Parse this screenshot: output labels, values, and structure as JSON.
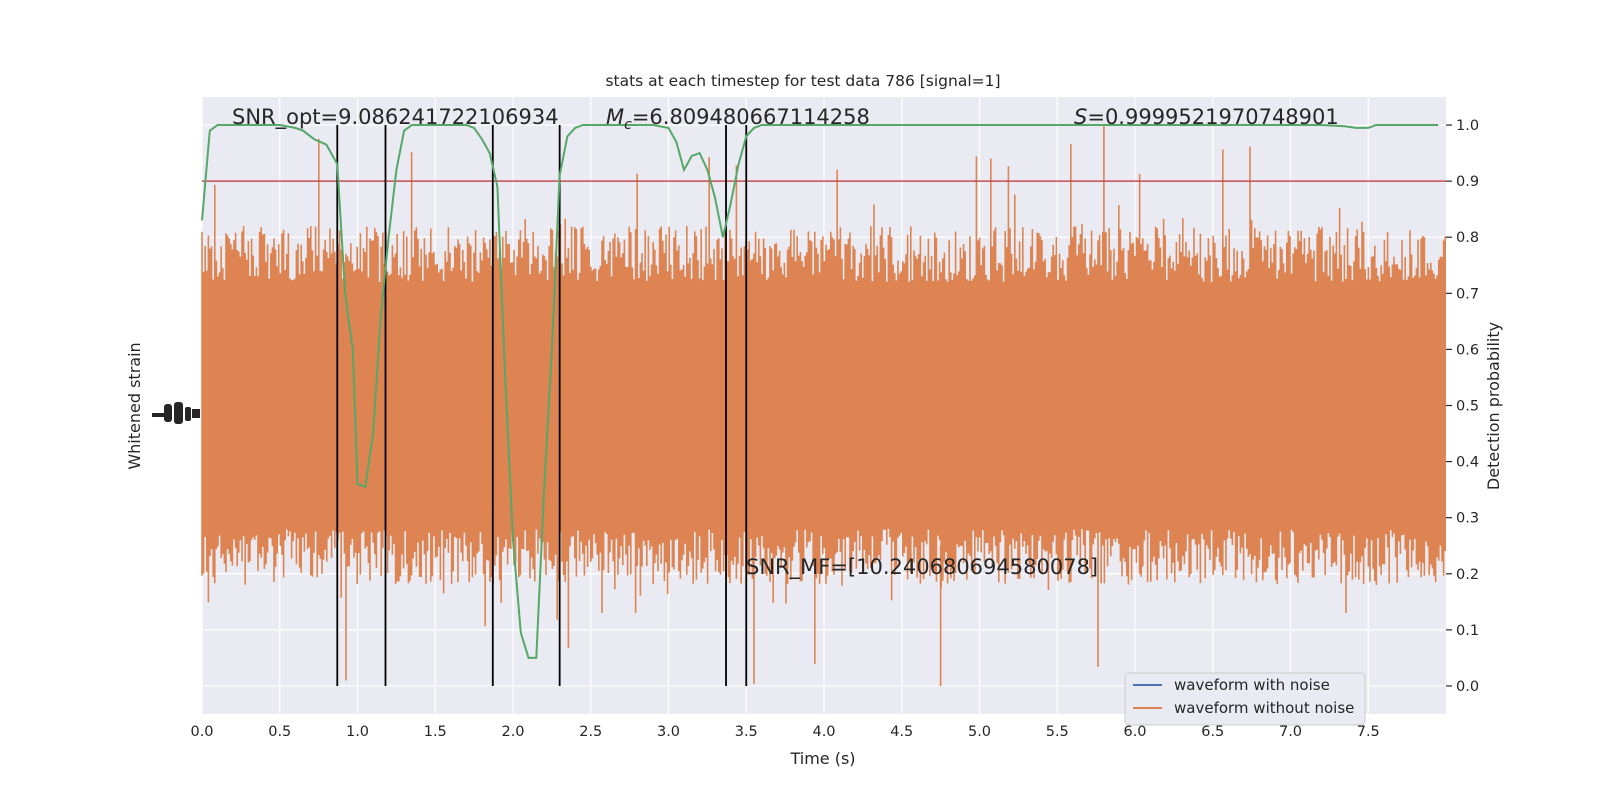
{
  "chart_data": {
    "type": "line",
    "title": "stats at each timestep for test data 786 [signal=1]",
    "xlabel": "Time (s)",
    "ylabel_left": "Whitened strain",
    "ylabel_right": "Detection probability",
    "xlim": [
      0.0,
      8.0
    ],
    "xticks": [
      0.0,
      0.5,
      1.0,
      1.5,
      2.0,
      2.5,
      3.0,
      3.5,
      4.0,
      4.5,
      5.0,
      5.5,
      6.0,
      6.5,
      7.0,
      7.5
    ],
    "xtick_labels": [
      "0.0",
      "0.5",
      "1.0",
      "1.5",
      "2.0",
      "2.5",
      "3.0",
      "3.5",
      "4.0",
      "4.5",
      "5.0",
      "5.5",
      "6.0",
      "6.5",
      "7.0",
      "7.5"
    ],
    "ylim_right": [
      -0.05,
      1.05
    ],
    "yticks_right": [
      0.0,
      0.1,
      0.2,
      0.3,
      0.4,
      0.5,
      0.6,
      0.7,
      0.8,
      0.9,
      1.0
    ],
    "ytick_labels_right": [
      "0.0",
      "0.1",
      "0.2",
      "0.3",
      "0.4",
      "0.5",
      "0.6",
      "0.7",
      "0.8",
      "0.9",
      "1.0"
    ],
    "grid": true,
    "legend": {
      "placement": "lower-right",
      "entries": [
        {
          "label": "waveform with noise",
          "color": "#4c72b0"
        },
        {
          "label": "waveform without noise",
          "color": "#dd8452"
        }
      ]
    },
    "annotations": {
      "snr_opt": "SNR_opt=9.086241722106934",
      "mc_symbol": "M",
      "mc_subscript": "c",
      "mc_value": "=6.809480667114258",
      "s_symbol": "S",
      "s_value": "=0.9999521970748901",
      "snr_mf": "SNR_MF=[10.240680694580078]"
    },
    "threshold": {
      "value": 0.9,
      "color": "#c44e52"
    },
    "vertical_lines_x": [
      0.87,
      1.18,
      1.87,
      2.3,
      3.37,
      3.5
    ],
    "detection_probability": {
      "color": "#55a868",
      "x": [
        0.0,
        0.05,
        0.1,
        0.2,
        0.3,
        0.4,
        0.5,
        0.6,
        0.65,
        0.72,
        0.8,
        0.87,
        0.92,
        0.97,
        1.0,
        1.05,
        1.1,
        1.15,
        1.2,
        1.25,
        1.3,
        1.35,
        1.4,
        1.5,
        1.6,
        1.7,
        1.75,
        1.8,
        1.85,
        1.9,
        1.95,
        2.0,
        2.05,
        2.1,
        2.15,
        2.2,
        2.25,
        2.3,
        2.35,
        2.4,
        2.45,
        2.5,
        2.6,
        2.7,
        2.8,
        2.9,
        3.0,
        3.05,
        3.1,
        3.15,
        3.2,
        3.25,
        3.3,
        3.35,
        3.4,
        3.45,
        3.5,
        3.55,
        3.6,
        3.7,
        3.8,
        4.0,
        4.5,
        5.0,
        5.5,
        6.0,
        6.5,
        7.0,
        7.2,
        7.35,
        7.42,
        7.5,
        7.55,
        7.6,
        7.7,
        7.8,
        7.95
      ],
      "y": [
        0.83,
        0.99,
        1.0,
        1.0,
        1.0,
        1.0,
        1.0,
        0.995,
        0.99,
        0.975,
        0.965,
        0.93,
        0.7,
        0.6,
        0.36,
        0.355,
        0.45,
        0.66,
        0.8,
        0.92,
        0.99,
        1.0,
        1.0,
        1.0,
        1.0,
        1.0,
        0.995,
        0.975,
        0.95,
        0.89,
        0.55,
        0.26,
        0.095,
        0.05,
        0.05,
        0.35,
        0.6,
        0.91,
        0.98,
        0.995,
        1.0,
        1.0,
        1.0,
        1.0,
        1.0,
        1.0,
        0.995,
        0.97,
        0.92,
        0.945,
        0.95,
        0.92,
        0.87,
        0.8,
        0.86,
        0.93,
        0.98,
        0.995,
        1.0,
        1.0,
        1.0,
        1.0,
        1.0,
        1.0,
        1.0,
        1.0,
        1.0,
        1.0,
        1.0,
        0.998,
        0.995,
        0.995,
        1.0,
        1.0,
        1.0,
        1.0,
        1.0
      ]
    },
    "strain_noise_band": {
      "color": "#dd8452",
      "core_range": [
        0.3,
        0.7
      ],
      "typical_range": [
        0.25,
        0.75
      ],
      "peak_range": [
        0.0,
        1.0
      ]
    },
    "left_axis_ticks": "overlapping unreadable labels"
  }
}
